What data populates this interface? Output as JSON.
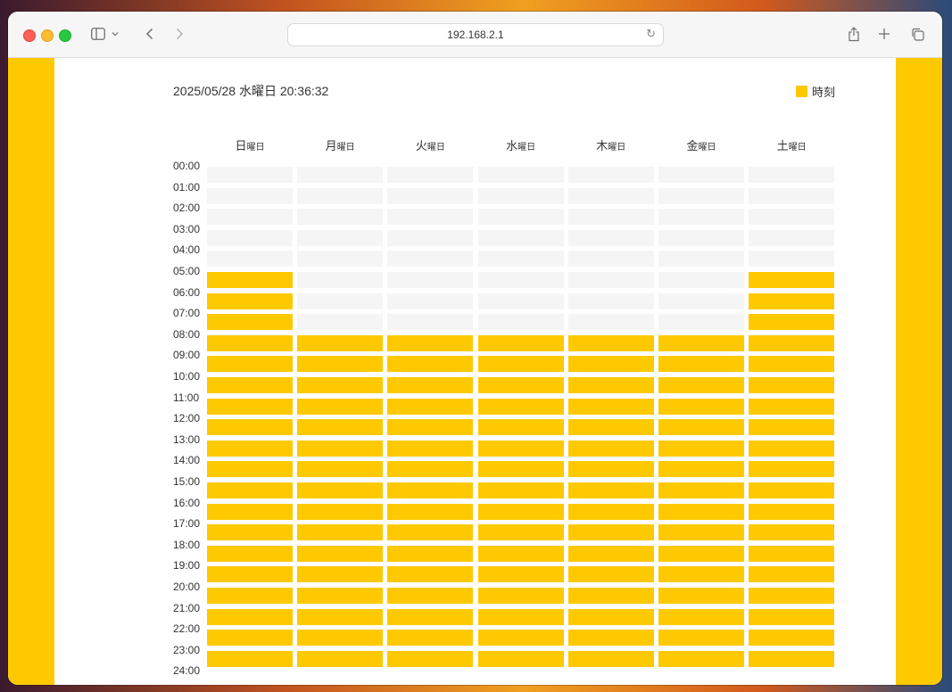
{
  "browser": {
    "address": "192.168.2.1",
    "icons": [
      "sidebar-icon",
      "chevron-down-icon",
      "back-icon",
      "forward-icon",
      "reload-icon",
      "share-icon",
      "new-tab-icon",
      "tab-overview-icon"
    ]
  },
  "page": {
    "datetime": "2025/05/28 水曜日 20:36:32",
    "legend_label": "時刻",
    "accent_color": "#fec900",
    "inactive_color": "#f5f5f5"
  },
  "days": [
    {
      "char": "日",
      "suffix": "曜日"
    },
    {
      "char": "月",
      "suffix": "曜日"
    },
    {
      "char": "火",
      "suffix": "曜日"
    },
    {
      "char": "水",
      "suffix": "曜日"
    },
    {
      "char": "木",
      "suffix": "曜日"
    },
    {
      "char": "金",
      "suffix": "曜日"
    },
    {
      "char": "土",
      "suffix": "曜日"
    }
  ],
  "hours": [
    "00:00",
    "01:00",
    "02:00",
    "03:00",
    "04:00",
    "05:00",
    "06:00",
    "07:00",
    "08:00",
    "09:00",
    "10:00",
    "11:00",
    "12:00",
    "13:00",
    "14:00",
    "15:00",
    "16:00",
    "17:00",
    "18:00",
    "19:00",
    "20:00",
    "21:00",
    "22:00",
    "23:00",
    "24:00"
  ],
  "schedule": [
    [
      0,
      0,
      0,
      0,
      0,
      1,
      1,
      1,
      1,
      1,
      1,
      1,
      1,
      1,
      1,
      1,
      1,
      1,
      1,
      1,
      1,
      1,
      1,
      1
    ],
    [
      0,
      0,
      0,
      0,
      0,
      0,
      0,
      0,
      1,
      1,
      1,
      1,
      1,
      1,
      1,
      1,
      1,
      1,
      1,
      1,
      1,
      1,
      1,
      1
    ],
    [
      0,
      0,
      0,
      0,
      0,
      0,
      0,
      0,
      1,
      1,
      1,
      1,
      1,
      1,
      1,
      1,
      1,
      1,
      1,
      1,
      1,
      1,
      1,
      1
    ],
    [
      0,
      0,
      0,
      0,
      0,
      0,
      0,
      0,
      1,
      1,
      1,
      1,
      1,
      1,
      1,
      1,
      1,
      1,
      1,
      1,
      1,
      1,
      1,
      1
    ],
    [
      0,
      0,
      0,
      0,
      0,
      0,
      0,
      0,
      1,
      1,
      1,
      1,
      1,
      1,
      1,
      1,
      1,
      1,
      1,
      1,
      1,
      1,
      1,
      1
    ],
    [
      0,
      0,
      0,
      0,
      0,
      0,
      0,
      0,
      1,
      1,
      1,
      1,
      1,
      1,
      1,
      1,
      1,
      1,
      1,
      1,
      1,
      1,
      1,
      1
    ],
    [
      0,
      0,
      0,
      0,
      0,
      1,
      1,
      1,
      1,
      1,
      1,
      1,
      1,
      1,
      1,
      1,
      1,
      1,
      1,
      1,
      1,
      1,
      1,
      1
    ]
  ]
}
